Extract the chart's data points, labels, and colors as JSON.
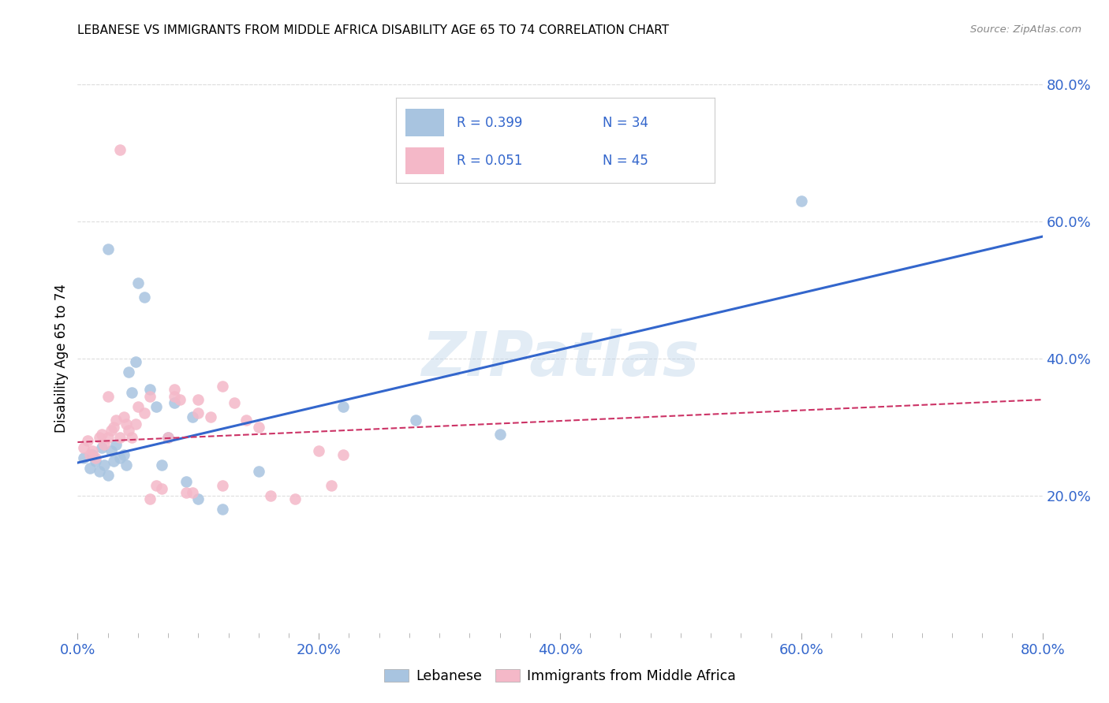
{
  "title": "LEBANESE VS IMMIGRANTS FROM MIDDLE AFRICA DISABILITY AGE 65 TO 74 CORRELATION CHART",
  "source": "Source: ZipAtlas.com",
  "ylabel": "Disability Age 65 to 74",
  "xlim": [
    0.0,
    0.8
  ],
  "ylim": [
    0.0,
    0.8
  ],
  "xtick_labels": [
    "0.0%",
    "",
    "",
    "",
    "",
    "",
    "",
    "",
    "20.0%",
    "",
    "",
    "",
    "",
    "",
    "",
    "",
    "40.0%",
    "",
    "",
    "",
    "",
    "",
    "",
    "",
    "60.0%",
    "",
    "",
    "",
    "",
    "",
    "",
    "",
    "80.0%"
  ],
  "xtick_values": [
    0.0,
    0.025,
    0.05,
    0.075,
    0.1,
    0.125,
    0.15,
    0.175,
    0.2,
    0.225,
    0.25,
    0.275,
    0.3,
    0.325,
    0.35,
    0.375,
    0.4,
    0.425,
    0.45,
    0.475,
    0.5,
    0.525,
    0.55,
    0.575,
    0.6,
    0.625,
    0.65,
    0.675,
    0.7,
    0.725,
    0.75,
    0.775,
    0.8
  ],
  "xtick_major_labels": [
    "0.0%",
    "20.0%",
    "40.0%",
    "60.0%",
    "80.0%"
  ],
  "xtick_major_values": [
    0.0,
    0.2,
    0.4,
    0.6,
    0.8
  ],
  "ytick_labels": [
    "20.0%",
    "40.0%",
    "60.0%",
    "80.0%"
  ],
  "ytick_values": [
    0.2,
    0.4,
    0.6,
    0.8
  ],
  "legend_label1": "Lebanese",
  "legend_label2": "Immigrants from Middle Africa",
  "blue_color": "#A8C4E0",
  "pink_color": "#F4B8C8",
  "line_blue_color": "#3366CC",
  "line_pink_color": "#CC3366",
  "tick_color": "#3366CC",
  "grid_color": "#DDDDDD",
  "watermark_color": "#B8D0E8",
  "watermark": "ZIPatlas",
  "blue_scatter_x": [
    0.005,
    0.01,
    0.012,
    0.015,
    0.018,
    0.02,
    0.022,
    0.025,
    0.028,
    0.03,
    0.032,
    0.035,
    0.038,
    0.04,
    0.042,
    0.045,
    0.048,
    0.05,
    0.055,
    0.06,
    0.065,
    0.07,
    0.075,
    0.08,
    0.09,
    0.095,
    0.1,
    0.12,
    0.15,
    0.22,
    0.28,
    0.35,
    0.6,
    0.025
  ],
  "blue_scatter_y": [
    0.255,
    0.24,
    0.26,
    0.25,
    0.235,
    0.27,
    0.245,
    0.23,
    0.265,
    0.25,
    0.275,
    0.255,
    0.26,
    0.245,
    0.38,
    0.35,
    0.395,
    0.51,
    0.49,
    0.355,
    0.33,
    0.245,
    0.285,
    0.335,
    0.22,
    0.315,
    0.195,
    0.18,
    0.235,
    0.33,
    0.31,
    0.29,
    0.63,
    0.56
  ],
  "pink_scatter_x": [
    0.005,
    0.008,
    0.01,
    0.012,
    0.015,
    0.018,
    0.02,
    0.022,
    0.025,
    0.028,
    0.03,
    0.032,
    0.035,
    0.038,
    0.04,
    0.042,
    0.045,
    0.048,
    0.05,
    0.055,
    0.06,
    0.065,
    0.07,
    0.075,
    0.08,
    0.085,
    0.09,
    0.095,
    0.1,
    0.11,
    0.12,
    0.13,
    0.14,
    0.15,
    0.16,
    0.18,
    0.2,
    0.21,
    0.22,
    0.025,
    0.035,
    0.06,
    0.08,
    0.1,
    0.12
  ],
  "pink_scatter_y": [
    0.27,
    0.28,
    0.26,
    0.265,
    0.255,
    0.285,
    0.29,
    0.275,
    0.285,
    0.295,
    0.3,
    0.31,
    0.285,
    0.315,
    0.305,
    0.295,
    0.285,
    0.305,
    0.33,
    0.32,
    0.195,
    0.215,
    0.21,
    0.285,
    0.345,
    0.34,
    0.205,
    0.205,
    0.32,
    0.315,
    0.215,
    0.335,
    0.31,
    0.3,
    0.2,
    0.195,
    0.265,
    0.215,
    0.26,
    0.345,
    0.705,
    0.345,
    0.355,
    0.34,
    0.36
  ],
  "blue_line_x": [
    0.0,
    0.8
  ],
  "blue_line_y": [
    0.248,
    0.578
  ],
  "pink_line_x": [
    0.0,
    0.8
  ],
  "pink_line_y": [
    0.278,
    0.34
  ]
}
